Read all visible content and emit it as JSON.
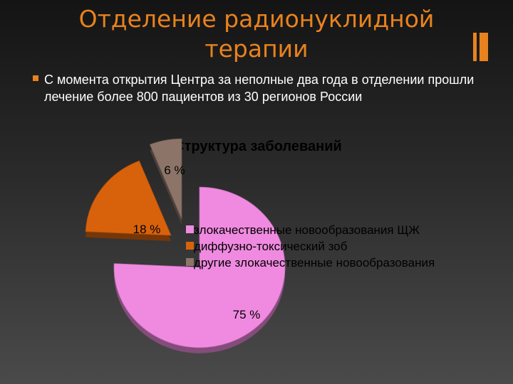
{
  "slide": {
    "title_line1": "Отделение радионуклидной",
    "title_line2": "терапии",
    "bullet": "С момента открытия Центра за неполные два года в отделении прошли лечение более 800 пациентов из 30 регионов России",
    "accent_color": "#e8821e"
  },
  "chart_data": {
    "type": "pie",
    "title": "Структура заболеваний",
    "slices": [
      {
        "name": "злокачественные новообразования ЩЖ",
        "value": 75,
        "label": "75 %",
        "color": "#f08ae0"
      },
      {
        "name": "диффузно-токсический зоб",
        "value": 18,
        "label": "18 %",
        "color": "#d8620c"
      },
      {
        "name": "другие злокачественные новообразования",
        "value": 6,
        "label": "6 %",
        "color": "#8c7468"
      }
    ],
    "legend_position": "right",
    "exploded": true
  }
}
